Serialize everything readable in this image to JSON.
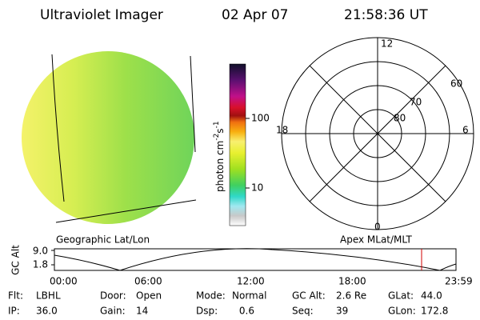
{
  "header": {
    "title": "Ultraviolet Imager",
    "date": "02 Apr 07",
    "time": "21:58:36 UT"
  },
  "colorbar": {
    "unit": {
      "base": "photon cm",
      "exp1": "-2",
      "mid": "s",
      "exp2": "-1"
    },
    "ticks": [
      "100",
      "10"
    ]
  },
  "image": {
    "caption": "Geographic Lat/Lon"
  },
  "polar": {
    "caption": "Apex MLat/MLT",
    "mlt": {
      "top": "12",
      "right": "6",
      "bottom": "0",
      "left": "18"
    },
    "lat": [
      "60",
      "70",
      "80"
    ]
  },
  "altitude": {
    "label": "GC Alt",
    "yticks": [
      "9.0",
      "1.8"
    ],
    "xticks": [
      "00:00",
      "06:00",
      "12:00",
      "18:00",
      "23:59"
    ]
  },
  "status": {
    "rows": [
      [
        {
          "label": "Flt:",
          "value": "LBHL"
        },
        {
          "label": "Door:",
          "value": "Open"
        },
        {
          "label": "Mode:",
          "value": "Normal"
        },
        {
          "label": "GC Alt:",
          "value": "2.6 Re"
        },
        {
          "label": "GLat:",
          "value": "44.0"
        }
      ],
      [
        {
          "label": "IP:",
          "value": "36.0"
        },
        {
          "label": "Gain:",
          "value": "14"
        },
        {
          "label": "Dsp:",
          "value": "0.6"
        },
        {
          "label": "Seq:",
          "value": "39"
        },
        {
          "label": "GLon:",
          "value": "172.8"
        }
      ]
    ]
  }
}
